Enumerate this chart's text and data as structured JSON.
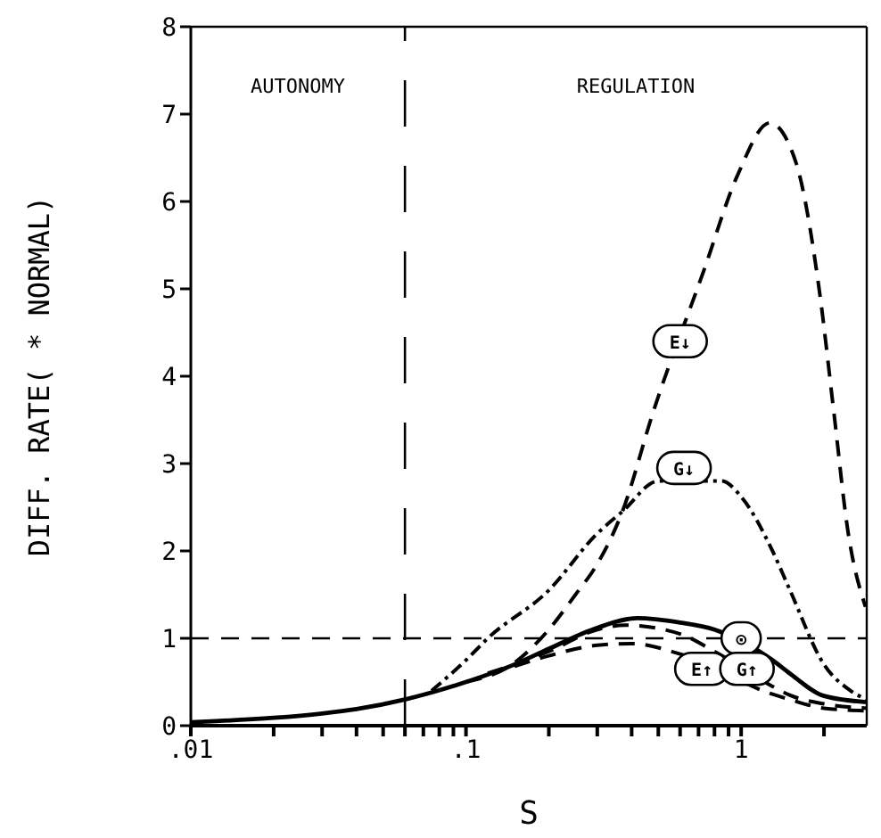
{
  "chart_data": {
    "type": "line",
    "xlabel": "S",
    "ylabel": "DIFF. RATE( * NORMAL)",
    "xlim": [
      0.01,
      2.86
    ],
    "ylim": [
      0,
      8
    ],
    "log": "x",
    "xticks": [
      {
        "value": 0.01,
        "label": ".01"
      },
      {
        "value": 0.02,
        "label": null
      },
      {
        "value": 0.03,
        "label": null
      },
      {
        "value": 0.04,
        "label": null
      },
      {
        "value": 0.05,
        "label": null
      },
      {
        "value": 0.06,
        "label": null
      },
      {
        "value": 0.07,
        "label": null
      },
      {
        "value": 0.08,
        "label": null
      },
      {
        "value": 0.09,
        "label": null
      },
      {
        "value": 0.1,
        "label": ".1"
      },
      {
        "value": 0.2,
        "label": null
      },
      {
        "value": 0.3,
        "label": null
      },
      {
        "value": 0.4,
        "label": null
      },
      {
        "value": 0.5,
        "label": null
      },
      {
        "value": 0.6,
        "label": null
      },
      {
        "value": 0.7,
        "label": null
      },
      {
        "value": 0.8,
        "label": null
      },
      {
        "value": 0.9,
        "label": null
      },
      1,
      {
        "value": 2,
        "label": null
      }
    ],
    "yticks": [
      0,
      1,
      2,
      3,
      4,
      5,
      6,
      7,
      8
    ],
    "marker": "none",
    "series": [
      {
        "color": "#000000",
        "line_style": "dashed",
        "x": [
          0.1,
          0.15,
          0.2,
          0.25,
          0.3,
          0.37,
          0.48,
          0.73,
          0.97,
          1.27,
          1.58,
          1.92,
          2.17,
          2.44,
          2.83
        ],
        "values": [
          0.5,
          0.72,
          1.1,
          1.5,
          1.85,
          2.45,
          3.6,
          5.2,
          6.3,
          6.9,
          6.45,
          5.0,
          3.6,
          2.24,
          1.36
        ]
      },
      {
        "color": "#000000",
        "line_style": "dotted",
        "x": [
          0.075,
          0.1,
          0.12,
          0.2,
          0.3,
          0.37,
          0.5,
          0.85,
          1.0,
          1.3,
          1.5,
          2.0,
          2.5,
          2.86
        ],
        "values": [
          0.4,
          0.75,
          1.0,
          1.55,
          2.2,
          2.45,
          2.8,
          2.8,
          2.62,
          2.0,
          1.56,
          0.7,
          0.4,
          0.3
        ]
      },
      {
        "color": "#000000",
        "line_style": "solid",
        "x": [
          0.01,
          0.02,
          0.03,
          0.04,
          0.06,
          0.075,
          0.1,
          0.15,
          0.2,
          0.3,
          0.42,
          0.6,
          0.8,
          1.3,
          1.5,
          2.0,
          2.86
        ],
        "values": [
          0.04,
          0.09,
          0.14,
          0.19,
          0.3,
          0.38,
          0.5,
          0.7,
          0.88,
          1.12,
          1.23,
          1.18,
          1.1,
          0.75,
          0.6,
          0.34,
          0.27
        ]
      },
      {
        "color": "#000000",
        "line_style": "dashed",
        "x": [
          0.15,
          0.2,
          0.3,
          0.4,
          0.6,
          1.3,
          1.5,
          2.0,
          2.86
        ],
        "values": [
          0.68,
          0.8,
          0.92,
          0.94,
          0.82,
          0.36,
          0.3,
          0.2,
          0.17
        ]
      },
      {
        "color": "#000000",
        "line_style": "dashed",
        "x": [
          0.12,
          0.15,
          0.2,
          0.3,
          0.38,
          0.6,
          0.8,
          1.3,
          1.5,
          2.0,
          2.86
        ],
        "values": [
          0.6,
          0.7,
          0.85,
          1.1,
          1.15,
          1.05,
          0.85,
          0.45,
          0.35,
          0.25,
          0.2
        ]
      }
    ],
    "ref_lines": [
      {
        "axis": "x",
        "value": 0.06,
        "line_style": "dashed",
        "color": "#000000"
      },
      {
        "axis": "y",
        "value": 1,
        "line_style": "dashed",
        "color": "#000000"
      }
    ],
    "annotations": [
      "AUTONOMY",
      "REGULATION",
      {
        "text": "E↓",
        "x": 0.6,
        "y": 4.4
      },
      {
        "text": "G↓",
        "x": 0.62,
        "y": 2.95
      },
      {
        "text": "⊙",
        "x": 1.0,
        "y": 1.0
      },
      {
        "text": "E↑",
        "x": 0.72,
        "y": 0.65
      },
      {
        "text": "G↑",
        "x": 1.05,
        "y": 0.65
      }
    ]
  }
}
